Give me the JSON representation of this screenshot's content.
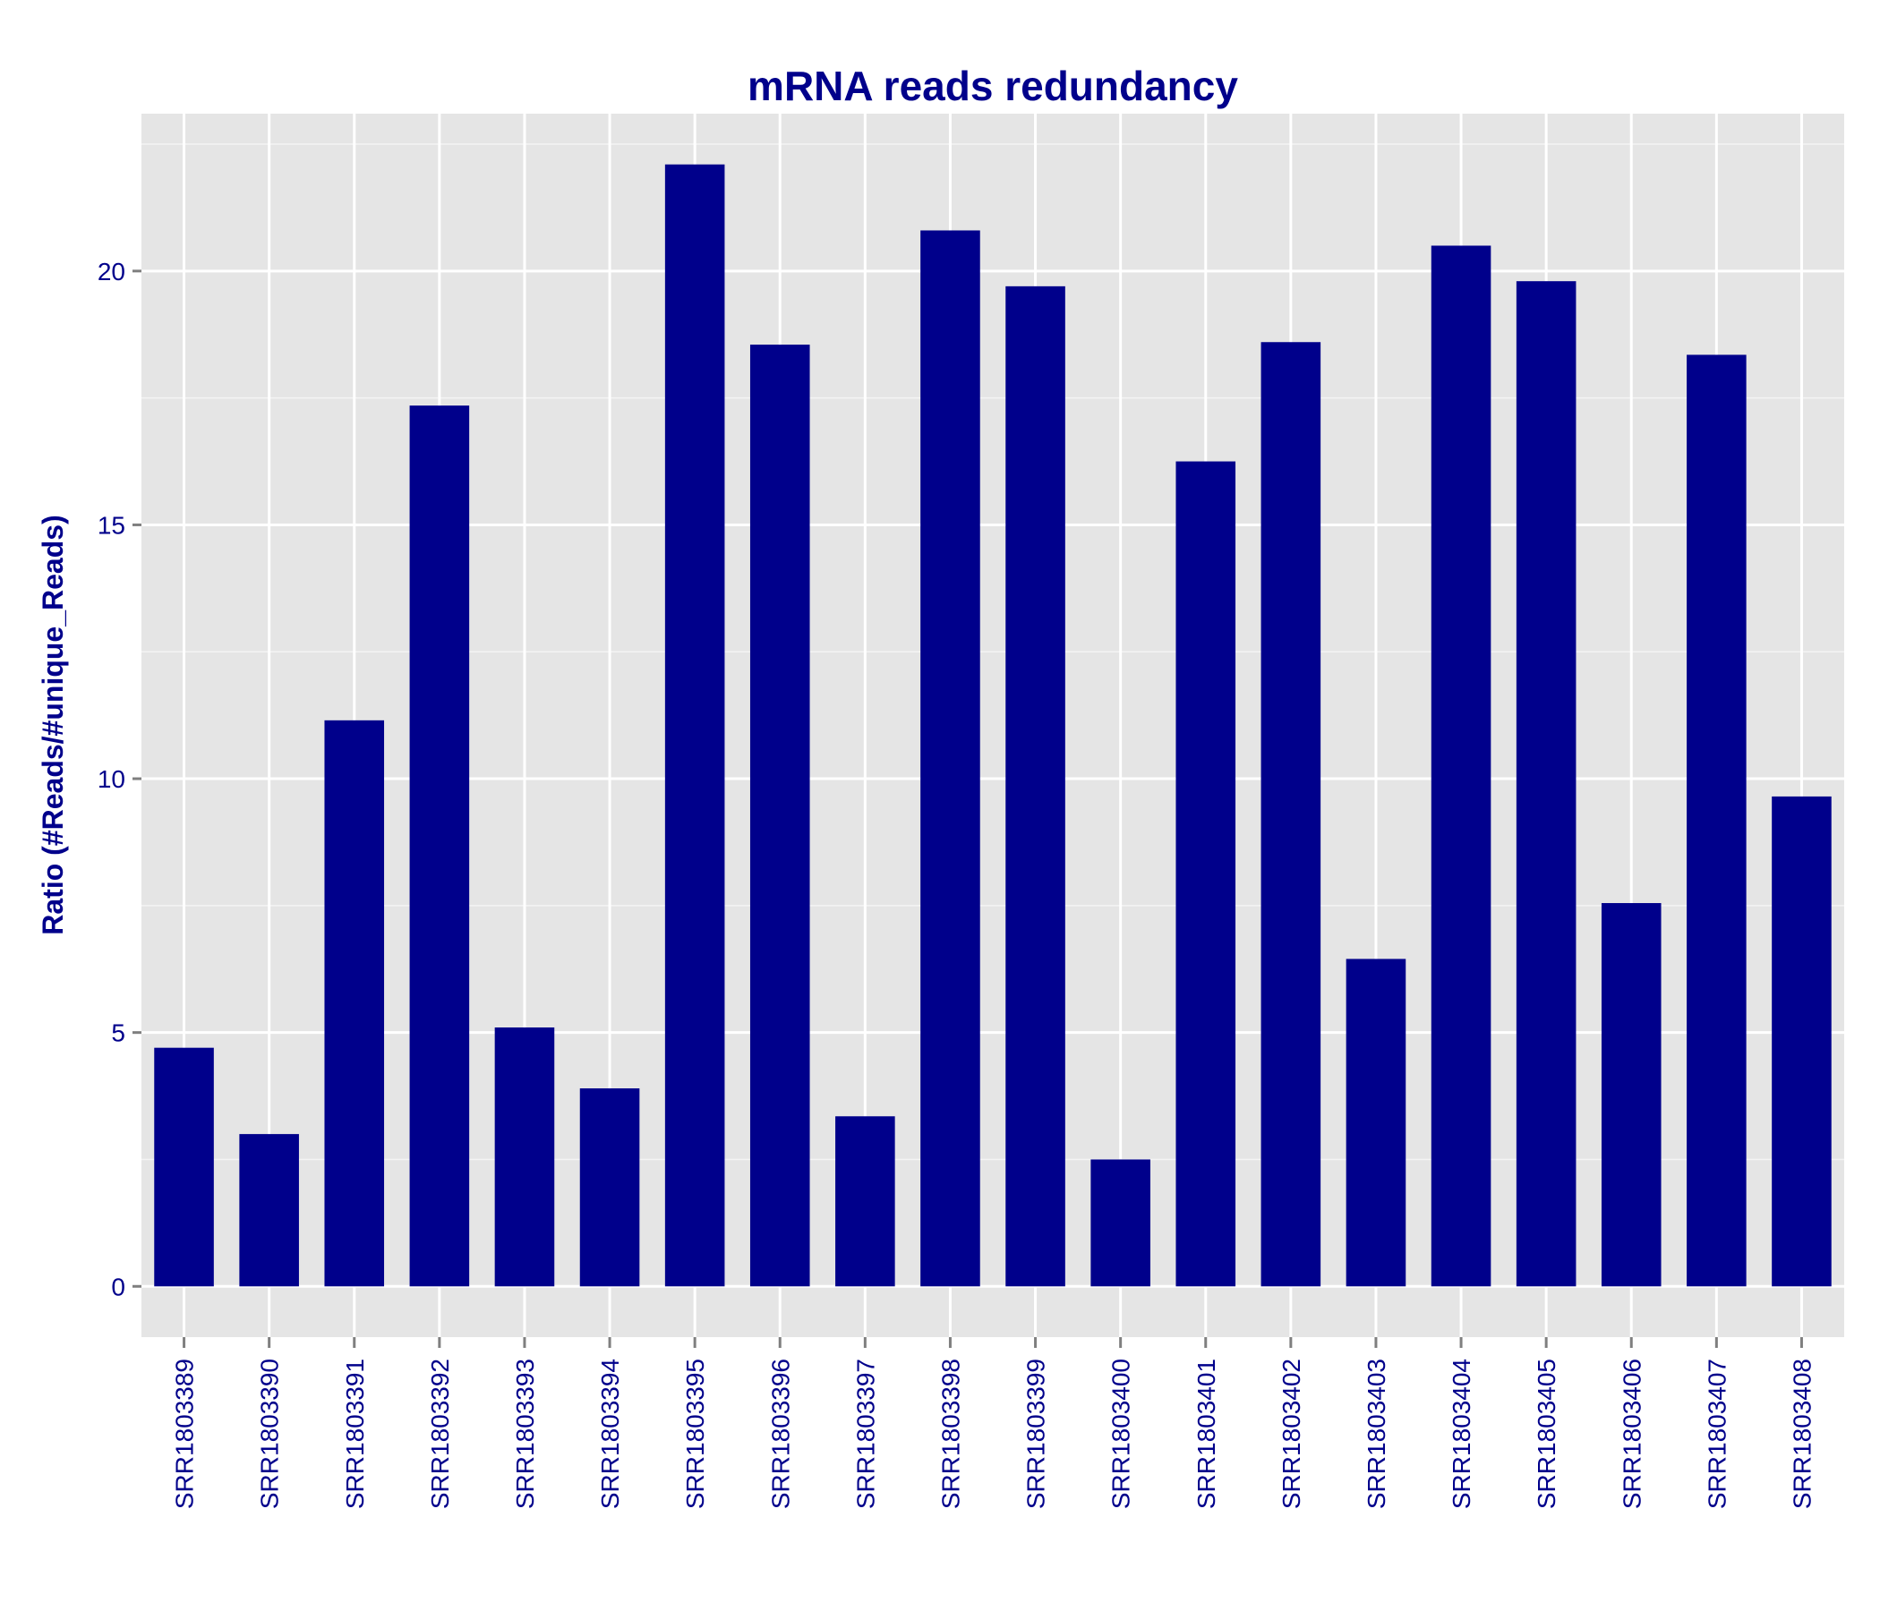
{
  "chart_data": {
    "type": "bar",
    "title": "mRNA reads redundancy",
    "xlabel": "",
    "ylabel": "Ratio (#Reads/#unique_Reads)",
    "categories": [
      "SRR1803389",
      "SRR1803390",
      "SRR1803391",
      "SRR1803392",
      "SRR1803393",
      "SRR1803394",
      "SRR1803395",
      "SRR1803396",
      "SRR1803397",
      "SRR1803398",
      "SRR1803399",
      "SRR1803400",
      "SRR1803401",
      "SRR1803402",
      "SRR1803403",
      "SRR1803404",
      "SRR1803405",
      "SRR1803406",
      "SRR1803407",
      "SRR1803408"
    ],
    "values": [
      4.7,
      3.0,
      11.15,
      17.35,
      5.1,
      3.9,
      22.1,
      18.55,
      3.35,
      20.8,
      19.7,
      2.5,
      16.25,
      18.6,
      6.45,
      20.5,
      19.8,
      7.55,
      18.35,
      9.65
    ],
    "ylim": [
      -1,
      23.1
    ],
    "yticks": [
      0,
      5,
      10,
      15,
      20
    ],
    "ytick_labels": [
      "0",
      "5",
      "10",
      "15",
      "20"
    ],
    "grid": true,
    "colors": {
      "bar": "#00008B",
      "panel": "#E5E5E5",
      "grid": "#FFFFFF",
      "text": "#00008B",
      "tick": "#7F7F7F"
    }
  }
}
